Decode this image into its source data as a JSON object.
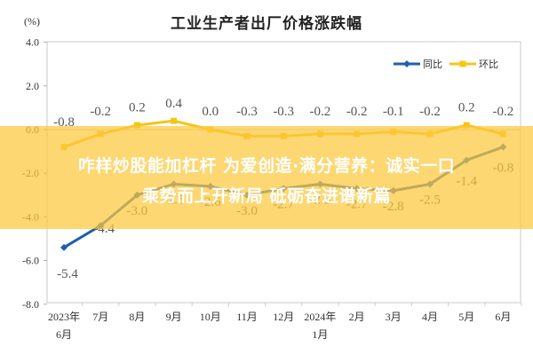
{
  "chart_data": {
    "type": "line",
    "title": "工业生产者出厂价格涨跌幅",
    "ylabel": "(%)",
    "xlabel": "",
    "ylim": [
      -8.0,
      4.0
    ],
    "yticks": [
      "4.0",
      "2.0",
      "0.0",
      "-2.0",
      "-4.0",
      "-6.0",
      "-8.0"
    ],
    "ytick_values": [
      4.0,
      2.0,
      0.0,
      -2.0,
      -4.0,
      -6.0,
      -8.0
    ],
    "categories": [
      "2023年6月",
      "7月",
      "8月",
      "9月",
      "10月",
      "11月",
      "12月",
      "2024年1月",
      "2月",
      "3月",
      "4月",
      "5月",
      "6月"
    ],
    "category_lines": [
      [
        "2023年",
        "6月"
      ],
      [
        "7月"
      ],
      [
        "8月"
      ],
      [
        "9月"
      ],
      [
        "10月"
      ],
      [
        "11月"
      ],
      [
        "12月"
      ],
      [
        "2024年",
        "1月"
      ],
      [
        "2月"
      ],
      [
        "3月"
      ],
      [
        "4月"
      ],
      [
        "5月"
      ],
      [
        "6月"
      ]
    ],
    "series": [
      {
        "name": "同比",
        "color": "#1f5fad",
        "values": [
          -5.4,
          -4.4,
          -3.0,
          -2.5,
          -2.6,
          -3.0,
          -2.7,
          -2.5,
          -2.7,
          -2.8,
          -2.5,
          -1.4,
          -0.8
        ],
        "labels": [
          "-5.4",
          "-4.4",
          "-3.0",
          "-2.5",
          "-2.6",
          "-3.0",
          "-2.7",
          "-2.5",
          "-2.7",
          "-2.8",
          "-2.5",
          "-1.4",
          "-0.8"
        ]
      },
      {
        "name": "环比",
        "color": "#f5c518",
        "values": [
          -0.8,
          -0.2,
          0.2,
          0.4,
          0.0,
          -0.3,
          -0.3,
          -0.2,
          -0.2,
          -0.1,
          -0.2,
          0.2,
          -0.2
        ],
        "labels": [
          "-0.8",
          "-0.2",
          "0.2",
          "0.4",
          "0.0",
          "-0.3",
          "-0.3",
          "-0.2",
          "-0.2",
          "-0.1",
          "-0.2",
          "0.2",
          "-0.2"
        ]
      }
    ],
    "grid": false,
    "legend_position": "top-right"
  },
  "banner": {
    "line1": "咋样炒股能加杠杆 为爱创造·满分营养：诚实一口",
    "line2": "乘势而上开新局 砥砺奋进谱新篇",
    "color": "#fcc83c"
  }
}
